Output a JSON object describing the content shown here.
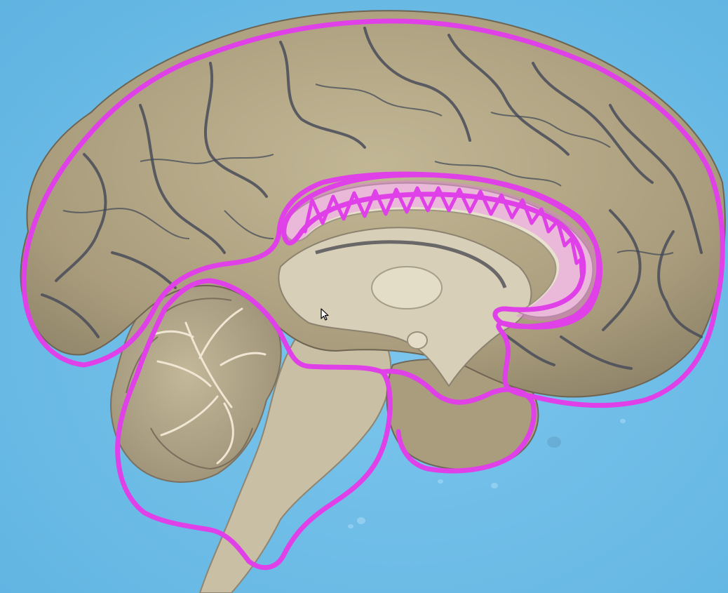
{
  "scene": {
    "background_color": "#5fb3e0",
    "background_highlight": "#7cc6ee",
    "tissue_gray_matter": "#b5a98a",
    "tissue_white_matter": "#d7cfb8",
    "tissue_shadow": "#5c5a63",
    "vessel_color": "#3e4656",
    "annotation_color": "#e040e8",
    "annotation_fill": "#ee6ff2"
  },
  "annotations": [
    {
      "name": "cerebral-hemisphere-outline"
    },
    {
      "name": "corpus-callosum-outline"
    },
    {
      "name": "cerebellum-brainstem-outline"
    }
  ],
  "cursor": {
    "icon": "arrow-cursor-icon"
  }
}
